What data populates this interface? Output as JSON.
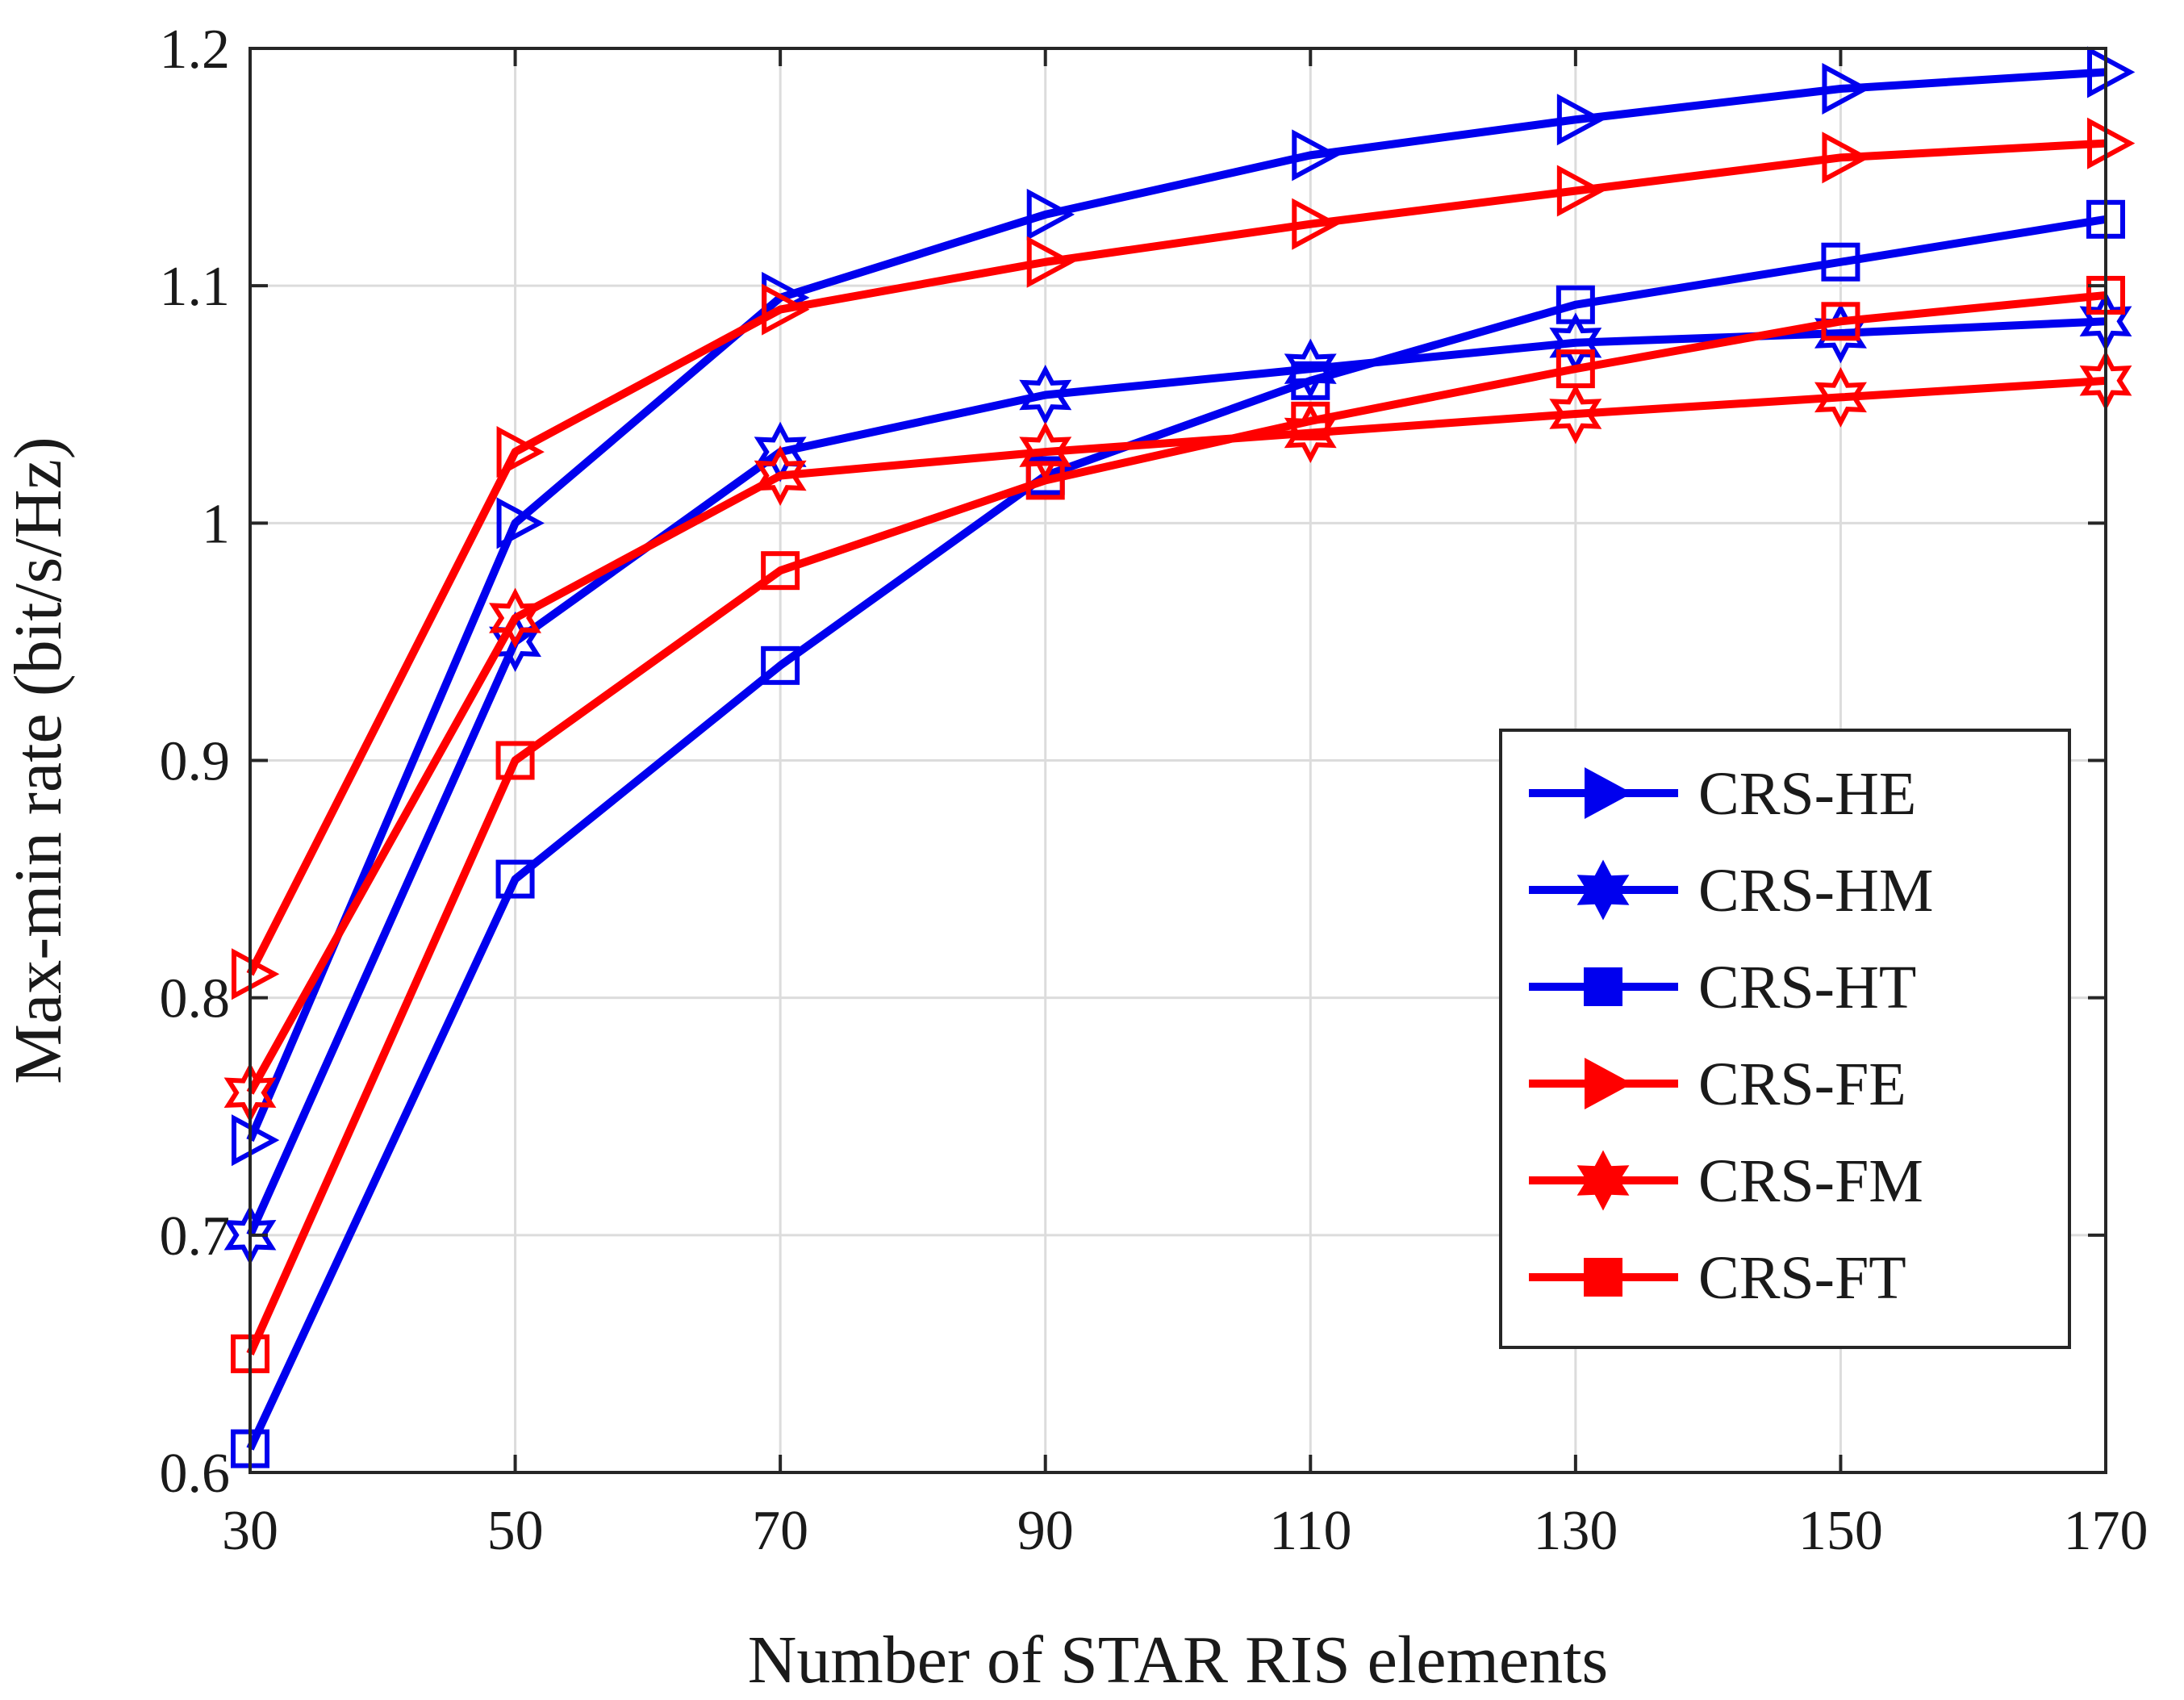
{
  "chart_data": {
    "type": "line",
    "title": "",
    "xlabel": "Number of STAR RIS elements",
    "ylabel": "Max-min rate (bit/s/Hz)",
    "xlim": [
      30,
      170
    ],
    "ylim": [
      0.6,
      1.2
    ],
    "xticks": [
      30,
      50,
      70,
      90,
      110,
      130,
      150,
      170
    ],
    "xtick_labels": [
      "30",
      "50",
      "70",
      "90",
      "110",
      "130",
      "150",
      "170"
    ],
    "yticks": [
      0.6,
      0.7,
      0.8,
      0.9,
      1.0,
      1.1,
      1.2
    ],
    "ytick_labels": [
      "0.6",
      "0.7",
      "0.8",
      "0.9",
      "1",
      "1.1",
      "1.2"
    ],
    "grid": true,
    "legend_position": "lower-right",
    "x": [
      30,
      50,
      70,
      90,
      110,
      130,
      150,
      170
    ],
    "series": [
      {
        "name": "CRS-HE",
        "color": "#0000ee",
        "marker": "triangle-right",
        "values": [
          0.74,
          1.0,
          1.095,
          1.13,
          1.155,
          1.17,
          1.183,
          1.19
        ]
      },
      {
        "name": "CRS-HM",
        "color": "#0000ee",
        "marker": "hexagram",
        "values": [
          0.7,
          0.95,
          1.03,
          1.054,
          1.065,
          1.076,
          1.08,
          1.085
        ]
      },
      {
        "name": "CRS-HT",
        "color": "#0000ee",
        "marker": "square",
        "values": [
          0.61,
          0.85,
          0.94,
          1.02,
          1.06,
          1.092,
          1.11,
          1.128
        ]
      },
      {
        "name": "CRS-FE",
        "color": "#ff0000",
        "marker": "triangle-right",
        "values": [
          0.81,
          1.03,
          1.09,
          1.11,
          1.126,
          1.14,
          1.154,
          1.16
        ]
      },
      {
        "name": "CRS-FM",
        "color": "#ff0000",
        "marker": "hexagram",
        "values": [
          0.76,
          0.96,
          1.02,
          1.03,
          1.038,
          1.046,
          1.053,
          1.06
        ]
      },
      {
        "name": "CRS-FT",
        "color": "#ff0000",
        "marker": "square",
        "values": [
          0.65,
          0.9,
          0.98,
          1.018,
          1.043,
          1.065,
          1.085,
          1.096
        ]
      }
    ]
  }
}
